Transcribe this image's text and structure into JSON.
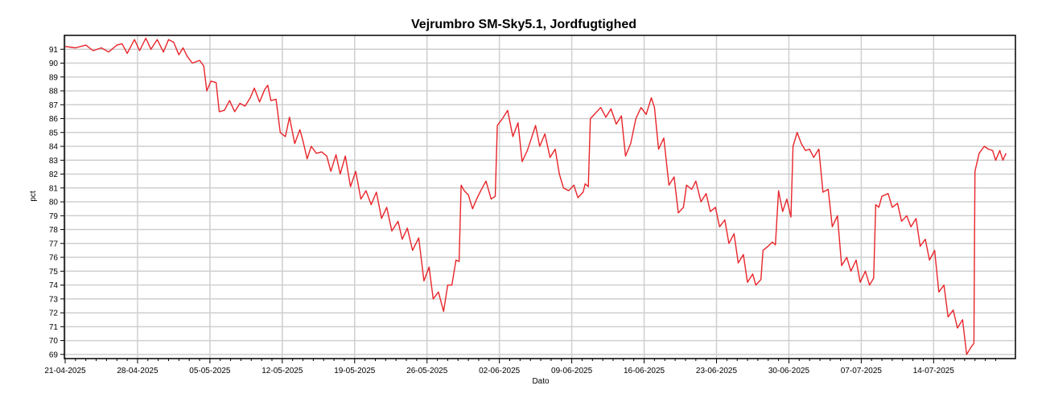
{
  "chart_data": {
    "type": "line",
    "title": "Vejrumbro SM-Sky5.1, Jordfugtighed",
    "xlabel": "Dato",
    "ylabel": "pct",
    "x_tick_labels": [
      "21-04-2025",
      "28-04-2025",
      "05-05-2025",
      "12-05-2025",
      "19-05-2025",
      "26-05-2025",
      "02-06-2025",
      "09-06-2025",
      "16-06-2025",
      "23-06-2025",
      "30-06-2025",
      "07-07-2025",
      "14-07-2025"
    ],
    "y_ticks": [
      69,
      70,
      71,
      72,
      73,
      74,
      75,
      76,
      77,
      78,
      79,
      80,
      81,
      82,
      83,
      84,
      85,
      86,
      87,
      88,
      89,
      90,
      91
    ],
    "ylim": [
      68.7,
      92.0
    ],
    "x_range_days": [
      0,
      90.8
    ],
    "grid": true,
    "series": [
      {
        "color": "#e8252a",
        "points": [
          [
            0,
            91.2
          ],
          [
            1,
            91.1
          ],
          [
            2,
            91.3
          ],
          [
            2.7,
            90.9
          ],
          [
            3.5,
            91.1
          ],
          [
            4.2,
            90.8
          ],
          [
            5,
            91.3
          ],
          [
            5.5,
            91.4
          ],
          [
            6,
            90.7
          ],
          [
            6.7,
            91.7
          ],
          [
            7.2,
            90.9
          ],
          [
            7.8,
            91.8
          ],
          [
            8.3,
            91.0
          ],
          [
            8.9,
            91.7
          ],
          [
            9.5,
            90.8
          ],
          [
            10,
            91.7
          ],
          [
            10.5,
            91.5
          ],
          [
            11,
            90.6
          ],
          [
            11.4,
            91.1
          ],
          [
            11.8,
            90.5
          ],
          [
            12.3,
            90.0
          ],
          [
            13,
            90.2
          ],
          [
            13.4,
            89.8
          ],
          [
            13.7,
            88.0
          ],
          [
            14.1,
            88.7
          ],
          [
            14.6,
            88.6
          ],
          [
            14.9,
            86.5
          ],
          [
            15.4,
            86.6
          ],
          [
            15.9,
            87.3
          ],
          [
            16.4,
            86.5
          ],
          [
            16.9,
            87.1
          ],
          [
            17.4,
            86.9
          ],
          [
            17.9,
            87.5
          ],
          [
            18.3,
            88.2
          ],
          [
            18.8,
            87.2
          ],
          [
            19.3,
            88.1
          ],
          [
            19.6,
            88.4
          ],
          [
            19.9,
            87.3
          ],
          [
            20.4,
            87.4
          ],
          [
            20.8,
            85.0
          ],
          [
            21.3,
            84.7
          ],
          [
            21.7,
            86.1
          ],
          [
            22.2,
            84.2
          ],
          [
            22.7,
            85.2
          ],
          [
            23.0,
            84.4
          ],
          [
            23.4,
            83.1
          ],
          [
            23.8,
            84.0
          ],
          [
            24.3,
            83.5
          ],
          [
            24.8,
            83.6
          ],
          [
            25.3,
            83.3
          ],
          [
            25.7,
            82.2
          ],
          [
            26.2,
            83.4
          ],
          [
            26.6,
            82.0
          ],
          [
            27.1,
            83.3
          ],
          [
            27.6,
            81.1
          ],
          [
            28.1,
            82.2
          ],
          [
            28.6,
            80.2
          ],
          [
            29.1,
            80.8
          ],
          [
            29.6,
            79.8
          ],
          [
            30.1,
            80.7
          ],
          [
            30.6,
            78.8
          ],
          [
            31.1,
            79.6
          ],
          [
            31.6,
            77.9
          ],
          [
            32.2,
            78.6
          ],
          [
            32.6,
            77.3
          ],
          [
            33.1,
            78.1
          ],
          [
            33.6,
            76.5
          ],
          [
            34.2,
            77.4
          ],
          [
            34.7,
            74.3
          ],
          [
            35.2,
            75.3
          ],
          [
            35.6,
            73.0
          ],
          [
            36.1,
            73.5
          ],
          [
            36.6,
            72.1
          ],
          [
            37.0,
            74.0
          ],
          [
            37.4,
            74.0
          ],
          [
            37.8,
            75.8
          ],
          [
            38.1,
            75.7
          ],
          [
            38.3,
            81.2
          ],
          [
            38.6,
            80.8
          ],
          [
            39.0,
            80.5
          ],
          [
            39.4,
            79.5
          ],
          [
            39.8,
            80.2
          ],
          [
            40.2,
            80.8
          ],
          [
            40.7,
            81.5
          ],
          [
            41.2,
            80.2
          ],
          [
            41.6,
            80.4
          ],
          [
            41.8,
            85.5
          ],
          [
            42.3,
            86.0
          ],
          [
            42.8,
            86.6
          ],
          [
            43.3,
            84.7
          ],
          [
            43.8,
            85.7
          ],
          [
            44.2,
            82.9
          ],
          [
            44.7,
            83.7
          ],
          [
            45.1,
            84.6
          ],
          [
            45.5,
            85.5
          ],
          [
            45.9,
            84.0
          ],
          [
            46.4,
            84.9
          ],
          [
            46.9,
            83.2
          ],
          [
            47.4,
            83.8
          ],
          [
            47.8,
            82.0
          ],
          [
            48.2,
            81.0
          ],
          [
            48.7,
            80.8
          ],
          [
            49.2,
            81.2
          ],
          [
            49.6,
            80.3
          ],
          [
            50.1,
            80.7
          ],
          [
            50.3,
            81.3
          ],
          [
            50.6,
            81.1
          ],
          [
            50.8,
            86.0
          ],
          [
            51.3,
            86.4
          ],
          [
            51.8,
            86.8
          ],
          [
            52.3,
            86.1
          ],
          [
            52.8,
            86.7
          ],
          [
            53.3,
            85.6
          ],
          [
            53.8,
            86.2
          ],
          [
            54.2,
            83.3
          ],
          [
            54.7,
            84.2
          ],
          [
            55.2,
            86.0
          ],
          [
            55.7,
            86.8
          ],
          [
            56.2,
            86.3
          ],
          [
            56.7,
            87.5
          ],
          [
            57.0,
            86.8
          ],
          [
            57.4,
            83.8
          ],
          [
            57.9,
            84.6
          ],
          [
            58.4,
            81.2
          ],
          [
            58.9,
            81.8
          ],
          [
            59.3,
            79.2
          ],
          [
            59.8,
            79.6
          ],
          [
            60.1,
            81.2
          ],
          [
            60.6,
            80.9
          ],
          [
            61.0,
            81.5
          ],
          [
            61.5,
            80.0
          ],
          [
            62.0,
            80.6
          ],
          [
            62.4,
            79.3
          ],
          [
            62.9,
            79.6
          ],
          [
            63.3,
            78.2
          ],
          [
            63.8,
            78.7
          ],
          [
            64.2,
            77.0
          ],
          [
            64.7,
            77.7
          ],
          [
            65.1,
            75.6
          ],
          [
            65.6,
            76.2
          ],
          [
            66.0,
            74.2
          ],
          [
            66.5,
            74.8
          ],
          [
            66.8,
            74.0
          ],
          [
            67.3,
            74.4
          ],
          [
            67.5,
            76.5
          ],
          [
            68.0,
            76.8
          ],
          [
            68.4,
            77.1
          ],
          [
            68.7,
            76.9
          ],
          [
            69.0,
            80.8
          ],
          [
            69.4,
            79.3
          ],
          [
            69.8,
            80.2
          ],
          [
            70.2,
            78.9
          ],
          [
            70.4,
            84.0
          ],
          [
            70.8,
            85.0
          ],
          [
            71.2,
            84.2
          ],
          [
            71.6,
            83.7
          ],
          [
            72.0,
            83.8
          ],
          [
            72.4,
            83.2
          ],
          [
            72.9,
            83.8
          ],
          [
            73.3,
            80.7
          ],
          [
            73.8,
            80.9
          ],
          [
            74.2,
            78.2
          ],
          [
            74.7,
            79.0
          ],
          [
            75.1,
            75.4
          ],
          [
            75.6,
            76.0
          ],
          [
            76.0,
            75.0
          ],
          [
            76.5,
            75.8
          ],
          [
            76.9,
            74.2
          ],
          [
            77.4,
            75.0
          ],
          [
            77.8,
            74.0
          ],
          [
            78.2,
            74.5
          ],
          [
            78.4,
            79.8
          ],
          [
            78.7,
            79.6
          ],
          [
            79.0,
            80.4
          ],
          [
            79.6,
            80.6
          ],
          [
            80.0,
            79.6
          ],
          [
            80.5,
            79.9
          ],
          [
            80.9,
            78.6
          ],
          [
            81.4,
            79.0
          ],
          [
            81.8,
            78.2
          ],
          [
            82.3,
            78.8
          ],
          [
            82.7,
            76.8
          ],
          [
            83.2,
            77.3
          ],
          [
            83.6,
            75.8
          ],
          [
            84.1,
            76.5
          ],
          [
            84.5,
            73.5
          ],
          [
            85.0,
            74.0
          ],
          [
            85.4,
            71.7
          ],
          [
            85.9,
            72.2
          ],
          [
            86.3,
            70.9
          ],
          [
            86.8,
            71.5
          ],
          [
            87.2,
            69.0
          ],
          [
            87.6,
            69.5
          ],
          [
            87.9,
            69.8
          ],
          [
            88.0,
            82.2
          ],
          [
            88.4,
            83.5
          ],
          [
            88.9,
            84.0
          ],
          [
            89.3,
            83.8
          ],
          [
            89.7,
            83.7
          ],
          [
            90.0,
            83.0
          ],
          [
            90.4,
            83.7
          ],
          [
            90.7,
            83.0
          ],
          [
            91.0,
            83.5
          ]
        ]
      }
    ]
  }
}
